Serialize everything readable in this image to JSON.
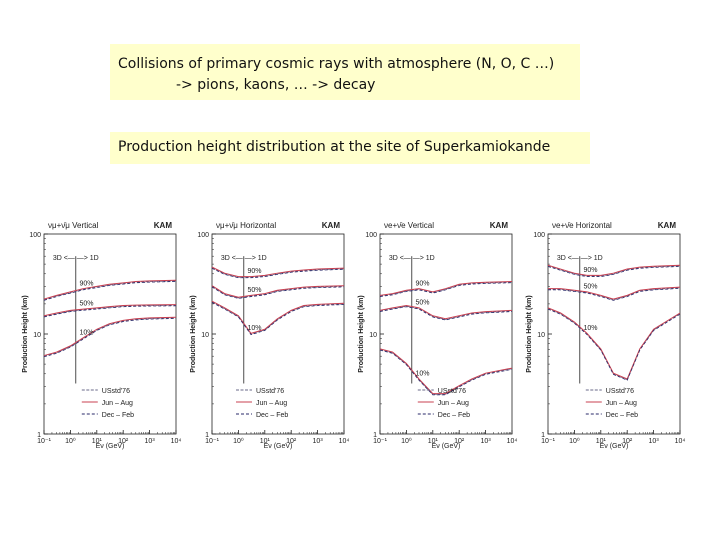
{
  "notes": {
    "line1": "Collisions of primary cosmic rays with atmosphere (N, O, C …)",
    "line2": "-> pions, kaons, …  -> decay",
    "line3": "Production height distribution at the site of Superkamiokande"
  },
  "chart_data": [
    {
      "type": "line",
      "panel_label": "νμ+ν̄μ  Vertical",
      "site": "KAM",
      "xlabel": "Eν (GeV)",
      "ylabel": "Production Height (km)",
      "xscale": "log",
      "yscale": "log",
      "xlim": [
        0.1,
        10000
      ],
      "ylim": [
        1,
        100
      ],
      "xticks": [
        "10⁻¹",
        "10⁰",
        "10¹",
        "10²",
        "10³",
        "10⁴"
      ],
      "yticks": [
        "1",
        "10",
        "100"
      ],
      "annotation": "3D <— —> 1D",
      "divider_x": 1.6,
      "legend_position": "bottom-right",
      "legend": [
        "USstd'76",
        "Jun – Aug",
        "Dec – Feb"
      ],
      "x": [
        0.1,
        0.3,
        1,
        3,
        10,
        30,
        100,
        300,
        1000,
        10000
      ],
      "series": [
        {
          "name": "90%",
          "values": [
            22,
            24,
            26,
            28,
            29.5,
            31,
            32,
            33,
            33.5,
            34
          ]
        },
        {
          "name": "50%",
          "values": [
            15,
            16,
            17,
            17.5,
            18,
            18.5,
            19,
            19.2,
            19.3,
            19.4
          ]
        },
        {
          "name": "10%",
          "values": [
            6,
            6.5,
            7.5,
            9,
            11,
            12.5,
            13.5,
            14,
            14.3,
            14.5
          ]
        }
      ]
    },
    {
      "type": "line",
      "panel_label": "νμ+ν̄μ  Horizontal",
      "site": "KAM",
      "xlabel": "Eν (GeV)",
      "ylabel": "Production Height (km)",
      "xscale": "log",
      "yscale": "log",
      "xlim": [
        0.1,
        10000
      ],
      "ylim": [
        1,
        100
      ],
      "xticks": [
        "10⁻¹",
        "10⁰",
        "10¹",
        "10²",
        "10³",
        "10⁴"
      ],
      "yticks": [
        "1",
        "10",
        "100"
      ],
      "annotation": "3D <— —> 1D",
      "divider_x": 1.6,
      "legend_position": "bottom-left",
      "legend": [
        "USstd'76",
        "Jun – Aug",
        "Dec – Feb"
      ],
      "x": [
        0.1,
        0.3,
        1,
        3,
        10,
        30,
        100,
        300,
        1000,
        10000
      ],
      "series": [
        {
          "name": "90%",
          "values": [
            46,
            40,
            37,
            37,
            38,
            40,
            42,
            43,
            44,
            45
          ]
        },
        {
          "name": "50%",
          "values": [
            30,
            25,
            23,
            24,
            25,
            27,
            28,
            29,
            29.5,
            30
          ]
        },
        {
          "name": "10%",
          "values": [
            21,
            18,
            15,
            10,
            11,
            14,
            17,
            19,
            19.5,
            20
          ]
        }
      ]
    },
    {
      "type": "line",
      "panel_label": "νe+ν̄e  Vertical",
      "site": "KAM",
      "xlabel": "Eν (GeV)",
      "ylabel": "Production Height (km)",
      "xscale": "log",
      "yscale": "log",
      "xlim": [
        0.1,
        10000
      ],
      "ylim": [
        1,
        100
      ],
      "xticks": [
        "10⁻¹",
        "10⁰",
        "10¹",
        "10²",
        "10³",
        "10⁴"
      ],
      "yticks": [
        "1",
        "10",
        "100"
      ],
      "annotation": "3D <— —> 1D",
      "divider_x": 1.6,
      "legend_position": "bottom-right",
      "legend": [
        "USstd'76",
        "Jun – Aug",
        "Dec – Feb"
      ],
      "x": [
        0.1,
        0.3,
        1,
        3,
        10,
        30,
        100,
        300,
        1000,
        10000
      ],
      "series": [
        {
          "name": "90%",
          "values": [
            24,
            25,
            27,
            28,
            26,
            28,
            31,
            32,
            32.5,
            33
          ]
        },
        {
          "name": "50%",
          "values": [
            17,
            18,
            19,
            18,
            15,
            14,
            15,
            16,
            16.5,
            17
          ]
        },
        {
          "name": "10%",
          "values": [
            7,
            6.5,
            5,
            3.5,
            2.5,
            2.5,
            3,
            3.5,
            4,
            4.5
          ]
        }
      ]
    },
    {
      "type": "line",
      "panel_label": "νe+ν̄e  Horizontal",
      "site": "KAM",
      "xlabel": "Eν (GeV)",
      "ylabel": "Production Height (km)",
      "xscale": "log",
      "yscale": "log",
      "xlim": [
        0.1,
        10000
      ],
      "ylim": [
        1,
        100
      ],
      "xticks": [
        "10⁻¹",
        "10⁰",
        "10¹",
        "10²",
        "10³",
        "10⁴"
      ],
      "yticks": [
        "1",
        "10",
        "100"
      ],
      "annotation": "3D <— —> 1D",
      "divider_x": 1.6,
      "legend_position": "bottom-right",
      "legend": [
        "USstd'76",
        "Jun – Aug",
        "Dec – Feb"
      ],
      "x": [
        0.1,
        0.3,
        1,
        3,
        10,
        30,
        100,
        300,
        1000,
        10000
      ],
      "series": [
        {
          "name": "90%",
          "values": [
            48,
            44,
            40,
            38,
            38,
            40,
            44,
            46,
            47,
            48
          ]
        },
        {
          "name": "50%",
          "values": [
            28,
            28,
            27,
            26,
            24,
            22,
            24,
            27,
            28,
            29
          ]
        },
        {
          "name": "10%",
          "values": [
            18,
            16,
            13,
            10,
            7,
            4,
            3.5,
            7,
            11,
            16
          ]
        }
      ]
    }
  ]
}
